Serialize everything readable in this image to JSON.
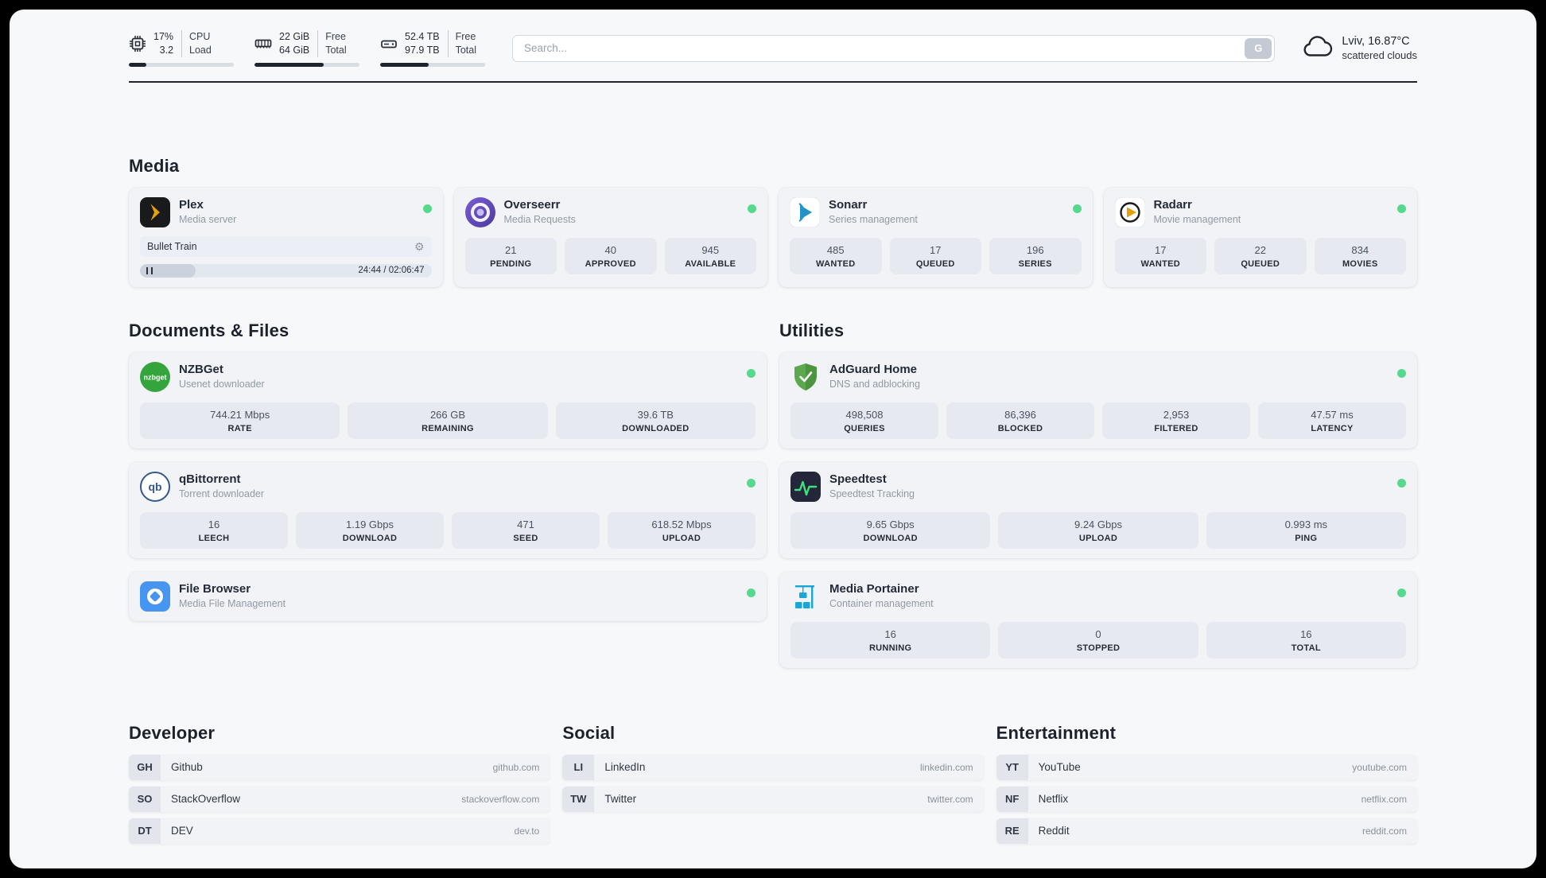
{
  "colors": {
    "status_online": "#55d98c",
    "plex_accent": "#e5a00d",
    "progress_fill": "#20242e"
  },
  "header": {
    "cpu": {
      "value_top": "17%",
      "value_bottom": "3.2",
      "label_top": "CPU",
      "label_bottom": "Load",
      "progress_percent": 17
    },
    "ram": {
      "value_top": "22 GiB",
      "value_bottom": "64 GiB",
      "label_top": "Free",
      "label_bottom": "Total",
      "progress_percent": 66
    },
    "disk": {
      "value_top": "52.4 TB",
      "value_bottom": "97.9 TB",
      "label_top": "Free",
      "label_bottom": "Total",
      "progress_percent": 46
    },
    "search": {
      "placeholder": "Search...",
      "button_label": "G"
    },
    "weather": {
      "location": "Lviv, 16.87°C",
      "condition": "scattered clouds"
    }
  },
  "sections": {
    "media": {
      "title": "Media",
      "apps": {
        "plex": {
          "name": "Plex",
          "description": "Media server",
          "now_playing": "Bullet Train",
          "time_display": "24:44 / 02:06:47",
          "progress_percent": 19
        },
        "overseerr": {
          "name": "Overseerr",
          "description": "Media Requests",
          "stats": [
            {
              "value": "21",
              "label": "PENDING"
            },
            {
              "value": "40",
              "label": "APPROVED"
            },
            {
              "value": "945",
              "label": "AVAILABLE"
            }
          ]
        },
        "sonarr": {
          "name": "Sonarr",
          "description": "Series management",
          "stats": [
            {
              "value": "485",
              "label": "WANTED"
            },
            {
              "value": "17",
              "label": "QUEUED"
            },
            {
              "value": "196",
              "label": "SERIES"
            }
          ]
        },
        "radarr": {
          "name": "Radarr",
          "description": "Movie management",
          "stats": [
            {
              "value": "17",
              "label": "WANTED"
            },
            {
              "value": "22",
              "label": "QUEUED"
            },
            {
              "value": "834",
              "label": "MOVIES"
            }
          ]
        }
      }
    },
    "documents": {
      "title": "Documents & Files",
      "apps": {
        "nzbget": {
          "name": "NZBGet",
          "description": "Usenet downloader",
          "stats": [
            {
              "value": "744.21 Mbps",
              "label": "RATE"
            },
            {
              "value": "266 GB",
              "label": "REMAINING"
            },
            {
              "value": "39.6 TB",
              "label": "DOWNLOADED"
            }
          ]
        },
        "qbittorrent": {
          "name": "qBittorrent",
          "description": "Torrent downloader",
          "stats": [
            {
              "value": "16",
              "label": "LEECH"
            },
            {
              "value": "1.19 Gbps",
              "label": "DOWNLOAD"
            },
            {
              "value": "471",
              "label": "SEED"
            },
            {
              "value": "618.52 Mbps",
              "label": "UPLOAD"
            }
          ]
        },
        "filebrowser": {
          "name": "File Browser",
          "description": "Media File Management"
        }
      }
    },
    "utilities": {
      "title": "Utilities",
      "apps": {
        "adguard": {
          "name": "AdGuard Home",
          "description": "DNS and adblocking",
          "stats": [
            {
              "value": "498,508",
              "label": "QUERIES"
            },
            {
              "value": "86,396",
              "label": "BLOCKED"
            },
            {
              "value": "2,953",
              "label": "FILTERED"
            },
            {
              "value": "47.57 ms",
              "label": "LATENCY"
            }
          ]
        },
        "speedtest": {
          "name": "Speedtest",
          "description": "Speedtest Tracking",
          "stats": [
            {
              "value": "9.65 Gbps",
              "label": "DOWNLOAD"
            },
            {
              "value": "9.24 Gbps",
              "label": "UPLOAD"
            },
            {
              "value": "0.993 ms",
              "label": "PING"
            }
          ]
        },
        "portainer": {
          "name": "Media Portainer",
          "description": "Container management",
          "stats": [
            {
              "value": "16",
              "label": "RUNNING"
            },
            {
              "value": "0",
              "label": "STOPPED"
            },
            {
              "value": "16",
              "label": "TOTAL"
            }
          ]
        }
      }
    },
    "developer": {
      "title": "Developer",
      "links": [
        {
          "abbr": "GH",
          "name": "Github",
          "domain": "github.com"
        },
        {
          "abbr": "SO",
          "name": "StackOverflow",
          "domain": "stackoverflow.com"
        },
        {
          "abbr": "DT",
          "name": "DEV",
          "domain": "dev.to"
        }
      ]
    },
    "social": {
      "title": "Social",
      "links": [
        {
          "abbr": "LI",
          "name": "LinkedIn",
          "domain": "linkedin.com"
        },
        {
          "abbr": "TW",
          "name": "Twitter",
          "domain": "twitter.com"
        }
      ]
    },
    "entertainment": {
      "title": "Entertainment",
      "links": [
        {
          "abbr": "YT",
          "name": "YouTube",
          "domain": "youtube.com"
        },
        {
          "abbr": "NF",
          "name": "Netflix",
          "domain": "netflix.com"
        },
        {
          "abbr": "RE",
          "name": "Reddit",
          "domain": "reddit.com"
        }
      ]
    }
  }
}
